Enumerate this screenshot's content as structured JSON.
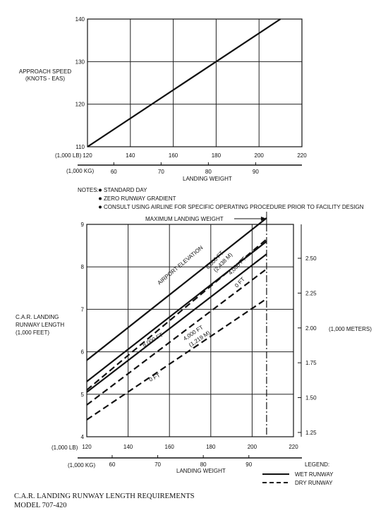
{
  "chart_data": [
    {
      "type": "line",
      "ylabel": [
        "APPROACH SPEED",
        "(KNOTS - EAS)"
      ],
      "yticks": [
        "110",
        "120",
        "130",
        "140"
      ],
      "ylim": [
        110,
        140
      ],
      "xlim": [
        120,
        220
      ],
      "x_lb_unit": "(1,000 LB)",
      "x_lb_ticks": [
        "120",
        "140",
        "160",
        "180",
        "200",
        "220"
      ],
      "x_kg_unit": "(1,000 KG)",
      "x_kg_ticks": [
        "60",
        "70",
        "80",
        "90"
      ],
      "xlabel": "LANDING WEIGHT",
      "grid": true,
      "series": [
        {
          "x": [
            120,
            210
          ],
          "y": [
            110,
            140
          ]
        }
      ]
    },
    {
      "type": "line",
      "ylabel": [
        "C.A.R. LANDING",
        "RUNWAY LENGTH",
        "(1,000 FEET)"
      ],
      "yticks": [
        "4",
        "5",
        "6",
        "7",
        "8",
        "9"
      ],
      "ylim": [
        4,
        9
      ],
      "y2label": "(1,000 METERS)",
      "y2ticks": [
        "1.25",
        "1.50",
        "1.75",
        "2.00",
        "2.25",
        "2.50"
      ],
      "xlim": [
        120,
        220
      ],
      "x_lb_unit": "(1,000 LB)",
      "x_lb_ticks": [
        "120",
        "140",
        "160",
        "180",
        "200",
        "220"
      ],
      "x_kg_unit": "(1,000 KG)",
      "x_kg_ticks": [
        "60",
        "70",
        "80",
        "90"
      ],
      "xlabel": "LANDING WEIGHT",
      "grid": true,
      "max_landing_weight": {
        "x": 207,
        "label": "MAXIMUM LANDING WEIGHT"
      },
      "annotations": [
        "AIRPORT ELEVATION",
        "8,000 FT",
        "(2,438 M)",
        "4,000 FT",
        "0 FT",
        "8,000 FT",
        "4,000 FT",
        "(1,219 M)",
        "0 FT"
      ],
      "series": [
        {
          "style": "solid",
          "x": [
            120,
            207
          ],
          "y": [
            5.8,
            9.15
          ]
        },
        {
          "style": "solid",
          "x": [
            120,
            207
          ],
          "y": [
            5.3,
            8.6
          ]
        },
        {
          "style": "solid",
          "x": [
            120,
            207
          ],
          "y": [
            5.05,
            8.3
          ]
        },
        {
          "style": "dashed",
          "x": [
            120,
            207
          ],
          "y": [
            5.1,
            8.65
          ]
        },
        {
          "style": "dashed",
          "x": [
            120,
            207
          ],
          "y": [
            4.75,
            7.95
          ]
        },
        {
          "style": "dashed",
          "x": [
            120,
            207
          ],
          "y": [
            4.4,
            7.25
          ]
        }
      ]
    }
  ],
  "notes": {
    "prefix": "NOTES:",
    "items": [
      "STANDARD DAY",
      "ZERO RUNWAY GRADIENT",
      "CONSULT USING AIRLINE FOR SPECIFIC OPERATING PROCEDURE PRIOR TO FACILITY DESIGN"
    ]
  },
  "legend": {
    "title": "LEGEND:",
    "items": [
      {
        "label": "WET RUNWAY",
        "style": "solid"
      },
      {
        "label": "DRY RUNWAY",
        "style": "dashed"
      }
    ]
  },
  "caption": {
    "line1": "C.A.R. LANDING RUNWAY LENGTH REQUIREMENTS",
    "line2": "MODEL 707-420"
  }
}
